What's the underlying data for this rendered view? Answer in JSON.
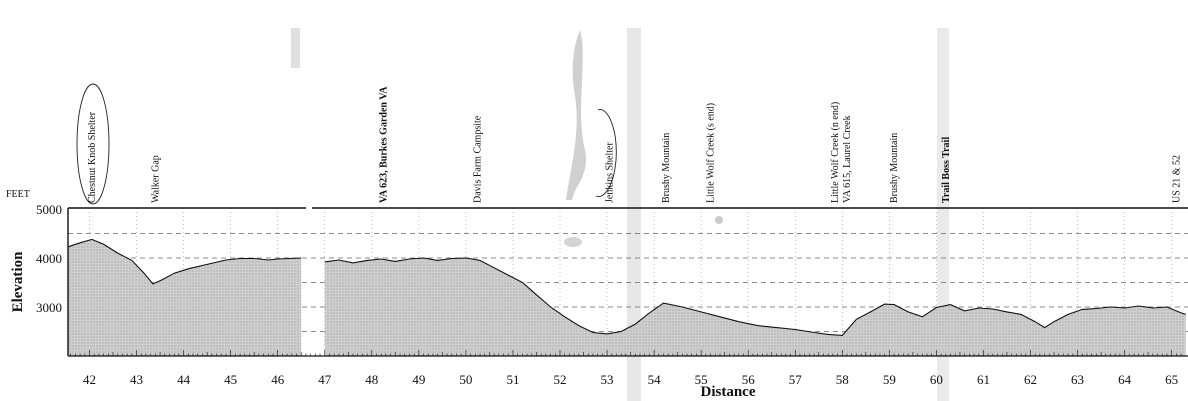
{
  "chart_data": {
    "type": "area",
    "xlabel": "Distance",
    "ylabel": "Elevation",
    "y_unit": "FEET",
    "x_range": [
      41.5,
      65.3
    ],
    "y_range": [
      2000,
      5000
    ],
    "x_ticks": [
      42,
      43,
      44,
      45,
      46,
      47,
      48,
      49,
      50,
      51,
      52,
      53,
      54,
      55,
      56,
      57,
      58,
      59,
      60,
      61,
      62,
      63,
      64,
      65
    ],
    "y_ticks": [
      3000,
      4000,
      5000
    ],
    "grid": true,
    "segments": [
      {
        "x": [
          41.55,
          41.8,
          42.05,
          42.3,
          42.6,
          42.9,
          43.15,
          43.35,
          43.55,
          43.8,
          44.1,
          44.5,
          44.9,
          45.2,
          45.5,
          45.8,
          46.0,
          46.5
        ],
        "y": [
          4230,
          4310,
          4380,
          4280,
          4100,
          3950,
          3700,
          3470,
          3560,
          3690,
          3780,
          3870,
          3960,
          3990,
          3990,
          3960,
          3980,
          4000
        ]
      },
      {
        "x": [
          47.0,
          47.3,
          47.6,
          47.9,
          48.2,
          48.5,
          48.8,
          49.1,
          49.4,
          49.7,
          50.0,
          50.3,
          50.6,
          50.9,
          51.2,
          51.5,
          51.8,
          52.1,
          52.4,
          52.7,
          53.0,
          53.3,
          53.6,
          53.9,
          54.2,
          54.6,
          55.0,
          55.4,
          55.8,
          56.2,
          56.6,
          57.0,
          57.4,
          57.7,
          58.0,
          58.3,
          58.6,
          58.9,
          59.1,
          59.4,
          59.7,
          60.0,
          60.3,
          60.6,
          60.9,
          61.2,
          61.5,
          61.8,
          62.1,
          62.3,
          62.5,
          62.8,
          63.1,
          63.4,
          63.7,
          64.0,
          64.3,
          64.6,
          64.9,
          65.2,
          65.3
        ],
        "y": [
          3920,
          3960,
          3900,
          3950,
          3980,
          3930,
          3980,
          4000,
          3950,
          3990,
          4000,
          3950,
          3800,
          3650,
          3500,
          3250,
          3000,
          2800,
          2620,
          2480,
          2450,
          2500,
          2650,
          2880,
          3080,
          3000,
          2900,
          2800,
          2700,
          2620,
          2580,
          2540,
          2480,
          2440,
          2420,
          2750,
          2900,
          3060,
          3050,
          2900,
          2800,
          2990,
          3050,
          2920,
          2980,
          2960,
          2900,
          2850,
          2700,
          2580,
          2700,
          2850,
          2950,
          2970,
          3000,
          2980,
          3020,
          2980,
          3000,
          2880,
          2850
        ]
      }
    ],
    "landmarks": [
      {
        "x": 42.05,
        "label": "Chestnut Knob Shelter",
        "bold": false
      },
      {
        "x": 43.4,
        "label": "Walker Gap",
        "bold": false
      },
      {
        "x": 48.25,
        "label": "VA 623, Burkes Garden VA",
        "bold": true
      },
      {
        "x": 50.25,
        "label": "Davis Farm Campsite",
        "bold": false
      },
      {
        "x": 53.05,
        "label": "Jenkins Shelter",
        "bold": false
      },
      {
        "x": 54.25,
        "label": "Brushy Mountain",
        "bold": false
      },
      {
        "x": 55.2,
        "label": "Little Wolf Creek (s end)",
        "bold": false
      },
      {
        "x": 57.85,
        "label": "Little Wolf Creek (n end)",
        "bold": false
      },
      {
        "x": 58.1,
        "label": "VA 615, Laurel Creek",
        "bold": false
      },
      {
        "x": 59.1,
        "label": "Brushy Mountain",
        "bold": false
      },
      {
        "x": 60.2,
        "label": "Trail Boss Trail",
        "bold": true
      },
      {
        "x": 65.1,
        "label": "US 21 & 52",
        "bold": false
      }
    ]
  }
}
